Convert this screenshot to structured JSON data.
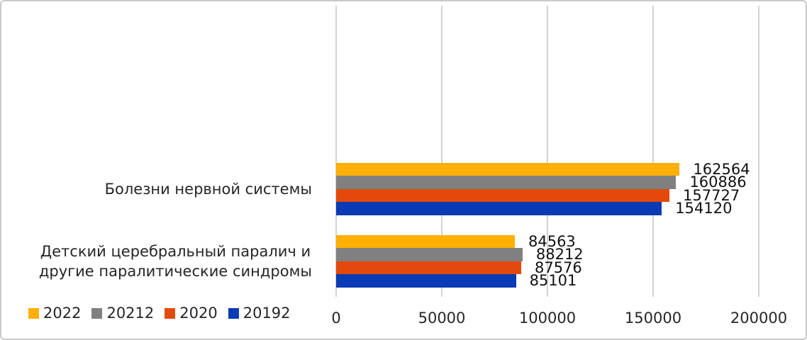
{
  "chart_data": {
    "type": "bar",
    "orientation": "horizontal",
    "title": "",
    "xlabel": "",
    "ylabel": "",
    "categories": [
      {
        "id": "nervous-system-diseases",
        "label_lines": [
          "Болезни нервной системы"
        ]
      },
      {
        "id": "cerebral-palsy-and-paralytic-syndromes",
        "label_lines": [
          "Детский церебральный паралич и",
          "другие паралитические синдромы"
        ]
      }
    ],
    "series": [
      {
        "name": "2022",
        "color": "#FFB005",
        "values": [
          162564,
          84563
        ]
      },
      {
        "name": "20212",
        "color": "#808080",
        "values": [
          160886,
          88212
        ]
      },
      {
        "name": "2020",
        "color": "#E3490B",
        "values": [
          157727,
          87576
        ]
      },
      {
        "name": "20192",
        "color": "#0B3BB4",
        "values": [
          154120,
          85101
        ]
      }
    ],
    "xlim": [
      0,
      200000
    ],
    "x_ticks": [
      "0",
      "50000",
      "100000",
      "150000",
      "200000"
    ],
    "grid": "vertical",
    "gridline_color": "#D3D3D3",
    "legend_position": "bottom-left",
    "data_labels": "outside-end",
    "background": "#FFFFFF"
  }
}
